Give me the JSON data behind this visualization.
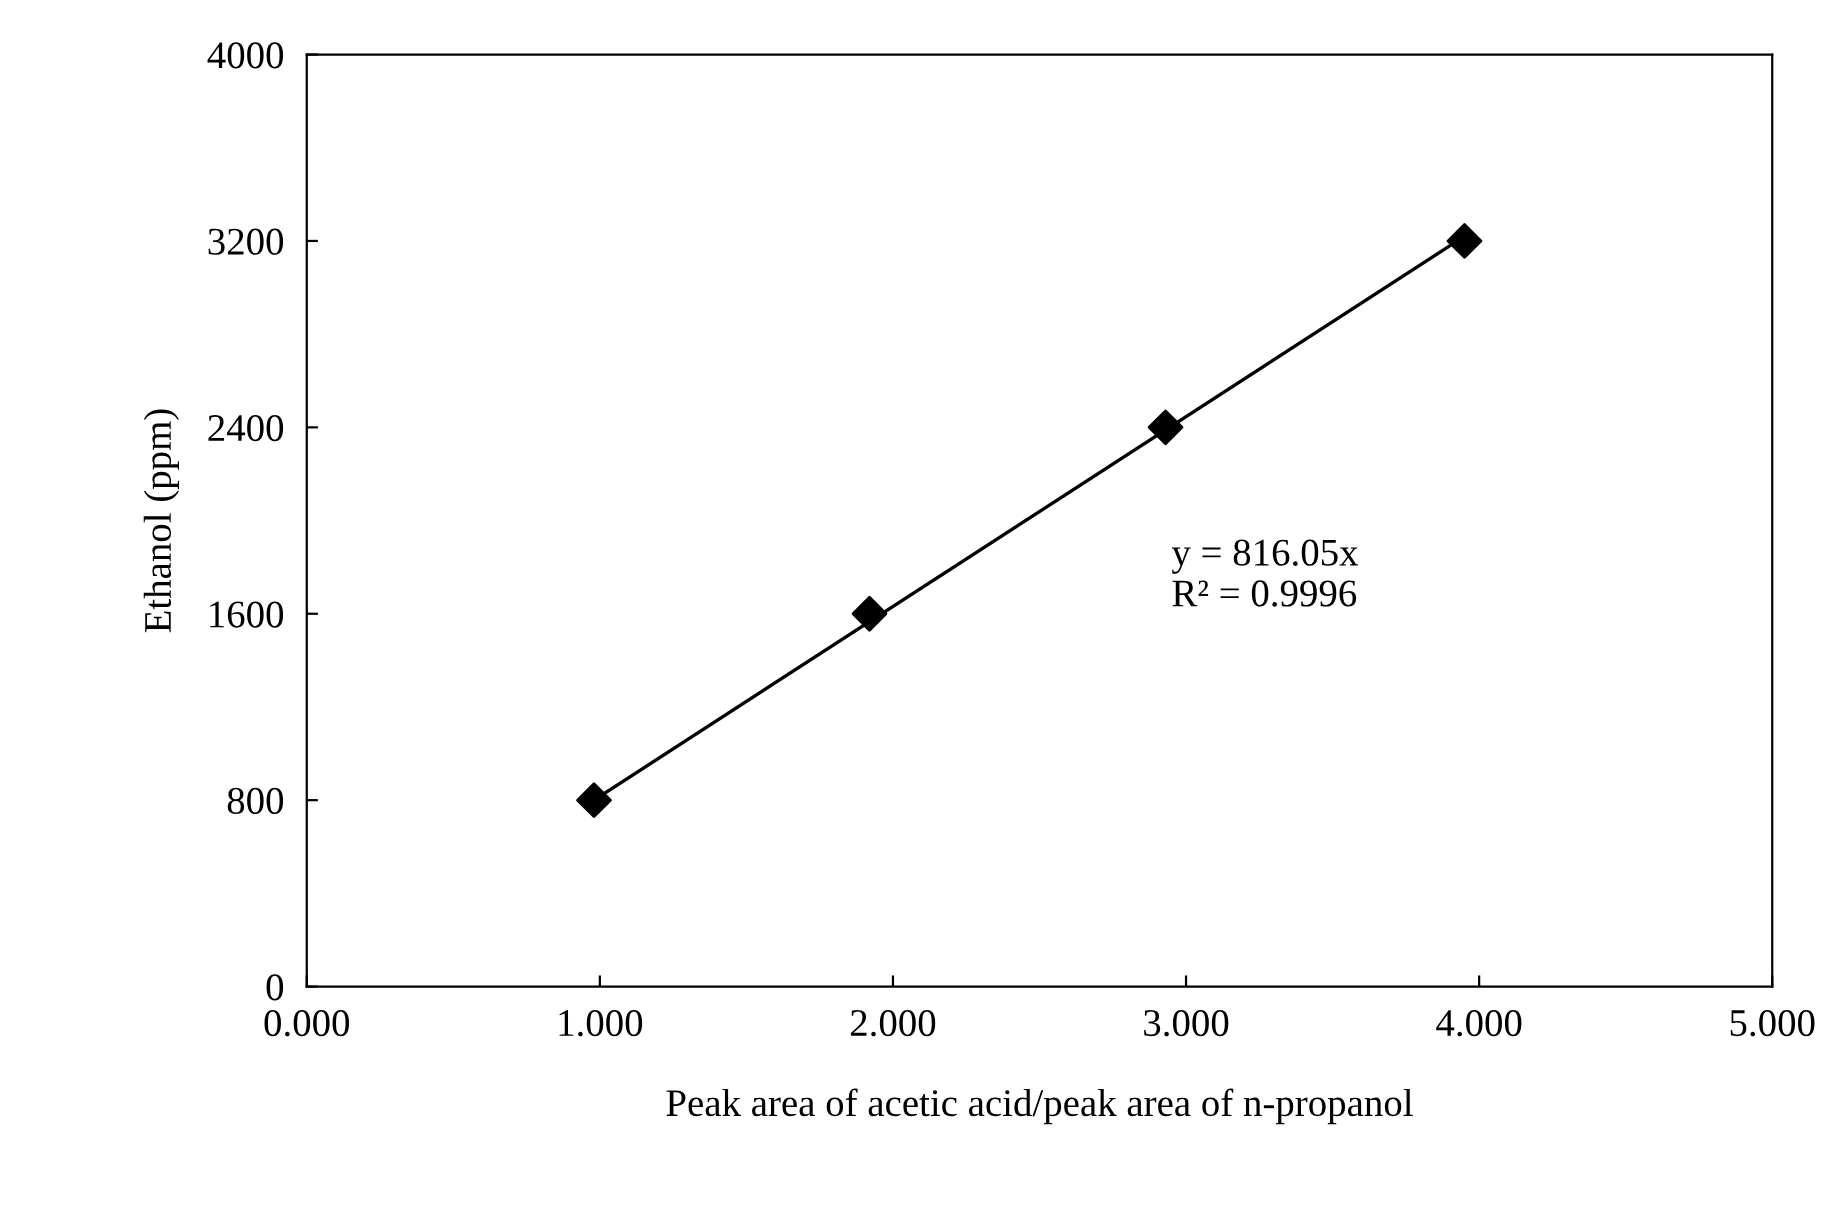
{
  "chart_data": {
    "type": "scatter",
    "xlabel": "Peak area of acetic acid/peak area of n-propanol",
    "ylabel": "Ethanol (ppm)",
    "series": [
      {
        "color": "#000000",
        "marker": "diamond",
        "x": [
          0.98,
          1.92,
          2.93,
          3.95
        ],
        "values": [
          800,
          1600,
          2400,
          3200
        ]
      },
      {
        "type": "line",
        "color": "#000000",
        "marker": "none",
        "x": [
          0.98,
          3.95
        ],
        "values": [
          800,
          3220
        ]
      }
    ],
    "xlim": [
      0,
      5
    ],
    "ylim": [
      0,
      4000
    ],
    "xticks": [
      {
        "value": 0,
        "label": "0.000"
      },
      {
        "value": 1,
        "label": "1.000"
      },
      {
        "value": 2,
        "label": "2.000"
      },
      {
        "value": 3,
        "label": "3.000"
      },
      {
        "value": 4,
        "label": "4.000"
      },
      {
        "value": 5,
        "label": "5.000"
      }
    ],
    "yticks": [
      0,
      800,
      1600,
      2400,
      3200,
      4000
    ],
    "annotations": [
      "y = 816.05x\nR² = 0.9996"
    ],
    "grid": false,
    "legend": false
  }
}
